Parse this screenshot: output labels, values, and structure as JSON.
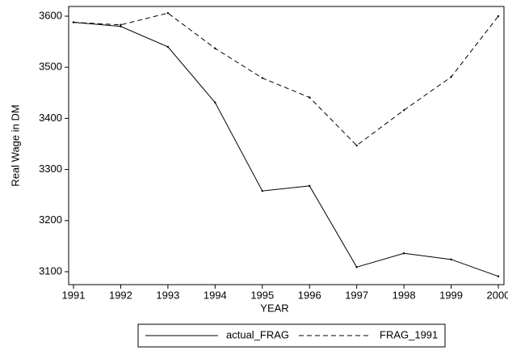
{
  "chart_data": {
    "type": "line",
    "x_label": "YEAR",
    "y_label": "Real Wage in DM",
    "x": [
      1991,
      1992,
      1993,
      1994,
      1995,
      1996,
      1997,
      1998,
      1999,
      2000
    ],
    "series": [
      {
        "name": "actual_FRAG",
        "color": "#000000",
        "dashed": false,
        "values": [
          3588,
          3580,
          3540,
          3431,
          3258,
          3268,
          3109,
          3136,
          3124,
          3091
        ]
      },
      {
        "name": "FRAG_1991",
        "color": "#000000",
        "dashed": true,
        "values": [
          3588,
          3583,
          3606,
          3537,
          3479,
          3441,
          3347,
          3416,
          3481,
          3600
        ]
      }
    ],
    "xlim": [
      1991,
      2000
    ],
    "xticks": [
      1991,
      1992,
      1993,
      1994,
      1995,
      1996,
      1997,
      1998,
      1999,
      2000
    ],
    "ylim": [
      3100,
      3600
    ],
    "yticks": [
      3100,
      3200,
      3300,
      3400,
      3500,
      3600
    ],
    "legend": "bottom"
  }
}
